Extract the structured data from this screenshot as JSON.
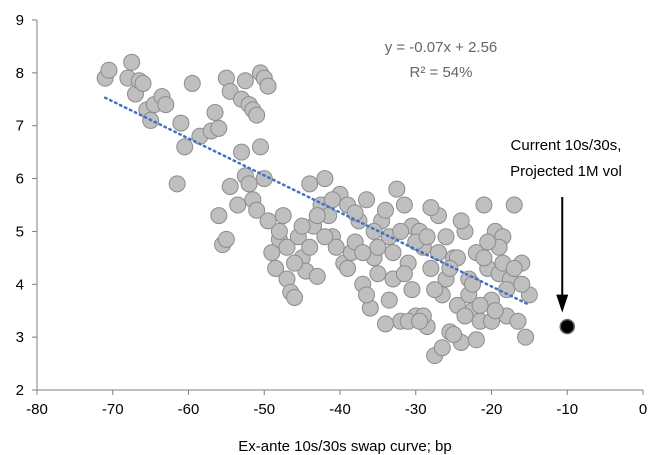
{
  "chart_data": {
    "type": "scatter",
    "title": "",
    "xlabel": "Ex-ante 10s/30s swap curve; bp",
    "ylabel": "",
    "xlim": [
      -80,
      0
    ],
    "ylim": [
      2,
      9
    ],
    "x_ticks": [
      "-80",
      "-70",
      "-60",
      "-50",
      "-40",
      "-30",
      "-20",
      "-10",
      "0"
    ],
    "y_ticks": [
      "2",
      "3",
      "4",
      "5",
      "6",
      "7",
      "8",
      "9"
    ],
    "grid": false,
    "legend": "none",
    "colors": {
      "points": "#bfbfbf",
      "point_edge": "#8c8c8c",
      "trend": "#4472c4",
      "current": "#000000"
    },
    "regression": {
      "slope": -0.07,
      "intercept": 2.56,
      "x_range": [
        -71,
        -15
      ],
      "equation_label": "y = -0.07x + 2.56",
      "r2_label": "R² = 54%"
    },
    "annotation": {
      "line1": "Current 10s/30s,",
      "line2": "Projected 1M vol"
    },
    "current_point": {
      "x": -10,
      "y": 3.2
    },
    "points": [
      [
        -71,
        7.9
      ],
      [
        -70.5,
        8.05
      ],
      [
        -68,
        7.9
      ],
      [
        -67.5,
        8.2
      ],
      [
        -67,
        7.6
      ],
      [
        -66.5,
        7.85
      ],
      [
        -66,
        7.8
      ],
      [
        -65.5,
        7.3
      ],
      [
        -65,
        7.1
      ],
      [
        -64.5,
        7.4
      ],
      [
        -63.5,
        7.55
      ],
      [
        -63,
        7.4
      ],
      [
        -61,
        7.05
      ],
      [
        -59.5,
        7.8
      ],
      [
        -58.5,
        6.8
      ],
      [
        -57,
        6.9
      ],
      [
        -56.5,
        7.25
      ],
      [
        -56,
        6.95
      ],
      [
        -55,
        7.9
      ],
      [
        -54.5,
        7.65
      ],
      [
        -53,
        7.5
      ],
      [
        -52.5,
        7.85
      ],
      [
        -52,
        7.4
      ],
      [
        -51.5,
        7.3
      ],
      [
        -51,
        7.2
      ],
      [
        -50.5,
        8.0
      ],
      [
        -50,
        7.9
      ],
      [
        -49.5,
        7.75
      ],
      [
        -60.5,
        6.6
      ],
      [
        -61.5,
        5.9
      ],
      [
        -56,
        5.3
      ],
      [
        -55.5,
        4.75
      ],
      [
        -55,
        4.85
      ],
      [
        -54.5,
        5.85
      ],
      [
        -53.5,
        5.5
      ],
      [
        -53,
        6.5
      ],
      [
        -52.5,
        6.05
      ],
      [
        -52,
        5.9
      ],
      [
        -51.5,
        5.6
      ],
      [
        -51,
        5.4
      ],
      [
        -50.5,
        6.6
      ],
      [
        -50,
        6.0
      ],
      [
        -49.5,
        5.2
      ],
      [
        -49,
        4.6
      ],
      [
        -48.5,
        4.3
      ],
      [
        -48,
        4.85
      ],
      [
        -47.5,
        5.3
      ],
      [
        -47,
        4.1
      ],
      [
        -46.5,
        3.85
      ],
      [
        -46,
        3.75
      ],
      [
        -45.5,
        4.9
      ],
      [
        -45,
        4.5
      ],
      [
        -44.5,
        4.25
      ],
      [
        -44,
        5.9
      ],
      [
        -43.5,
        5.1
      ],
      [
        -43,
        4.15
      ],
      [
        -42.5,
        5.5
      ],
      [
        -42,
        6.0
      ],
      [
        -41.5,
        5.3
      ],
      [
        -41,
        4.9
      ],
      [
        -40.5,
        4.7
      ],
      [
        -40,
        5.7
      ],
      [
        -39.5,
        4.4
      ],
      [
        -39,
        5.5
      ],
      [
        -38.5,
        4.6
      ],
      [
        -38,
        4.8
      ],
      [
        -37.5,
        5.2
      ],
      [
        -37,
        4.0
      ],
      [
        -36.5,
        5.6
      ],
      [
        -36,
        3.55
      ],
      [
        -35.5,
        4.5
      ],
      [
        -35,
        4.2
      ],
      [
        -34.5,
        5.2
      ],
      [
        -34,
        5.4
      ],
      [
        -33.5,
        4.9
      ],
      [
        -33,
        4.6
      ],
      [
        -32.5,
        5.8
      ],
      [
        -32,
        3.3
      ],
      [
        -31.5,
        5.5
      ],
      [
        -31,
        4.4
      ],
      [
        -30.5,
        5.1
      ],
      [
        -30,
        3.4
      ],
      [
        -29.5,
        5.0
      ],
      [
        -29,
        4.7
      ],
      [
        -28.5,
        3.2
      ],
      [
        -28,
        4.3
      ],
      [
        -27.5,
        2.65
      ],
      [
        -27,
        5.3
      ],
      [
        -26.5,
        3.8
      ],
      [
        -26,
        4.9
      ],
      [
        -25.5,
        3.1
      ],
      [
        -25,
        4.5
      ],
      [
        -24.5,
        3.6
      ],
      [
        -24,
        2.9
      ],
      [
        -23.5,
        5.0
      ],
      [
        -23,
        4.1
      ],
      [
        -22.5,
        3.5
      ],
      [
        -22,
        4.6
      ],
      [
        -21.5,
        3.3
      ],
      [
        -21,
        5.5
      ],
      [
        -20.5,
        4.3
      ],
      [
        -20,
        3.7
      ],
      [
        -19.5,
        5.0
      ],
      [
        -19,
        4.2
      ],
      [
        -18.5,
        4.9
      ],
      [
        -18,
        3.4
      ],
      [
        -17.5,
        4.1
      ],
      [
        -17,
        5.5
      ],
      [
        -16.5,
        3.3
      ],
      [
        -16,
        4.4
      ],
      [
        -15.5,
        3.0
      ],
      [
        -15,
        3.8
      ],
      [
        -33,
        4.1
      ],
      [
        -34,
        3.25
      ],
      [
        -35,
        4.7
      ],
      [
        -36.5,
        3.8
      ],
      [
        -29,
        3.4
      ],
      [
        -30,
        4.8
      ],
      [
        -31,
        3.3
      ],
      [
        -25,
        3.05
      ],
      [
        -23,
        3.8
      ],
      [
        -22,
        2.95
      ],
      [
        -26,
        4.1
      ],
      [
        -27,
        4.6
      ],
      [
        -28,
        5.45
      ],
      [
        -24,
        5.2
      ],
      [
        -21,
        4.5
      ],
      [
        -20,
        3.3
      ],
      [
        -19,
        4.7
      ],
      [
        -18,
        3.9
      ],
      [
        -38,
        5.35
      ],
      [
        -39,
        4.3
      ],
      [
        -42,
        4.9
      ],
      [
        -44,
        4.7
      ],
      [
        -46,
        4.4
      ],
      [
        -41,
        5.6
      ],
      [
        -43,
        5.3
      ],
      [
        -45,
        5.1
      ],
      [
        -47,
        4.7
      ],
      [
        -48,
        5.0
      ],
      [
        -32,
        5.0
      ],
      [
        -31.5,
        4.2
      ],
      [
        -30.5,
        3.9
      ],
      [
        -27.5,
        3.9
      ],
      [
        -26.5,
        2.8
      ],
      [
        -24.5,
        4.5
      ],
      [
        -22.5,
        4.0
      ],
      [
        -21.5,
        3.6
      ],
      [
        -19.5,
        3.5
      ],
      [
        -18.5,
        4.4
      ],
      [
        -17,
        4.3
      ],
      [
        -16,
        4.0
      ],
      [
        -37,
        4.6
      ],
      [
        -35.5,
        5.0
      ],
      [
        -33.5,
        3.7
      ],
      [
        -28.5,
        4.9
      ],
      [
        -25.5,
        4.3
      ],
      [
        -23.5,
        3.4
      ],
      [
        -20.5,
        4.8
      ],
      [
        -29.5,
        3.3
      ]
    ]
  }
}
